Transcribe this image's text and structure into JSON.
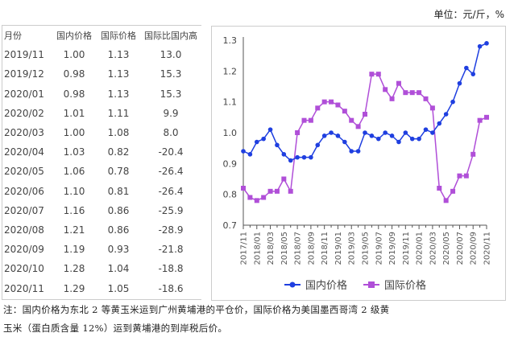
{
  "unit": "单位：元/斤，%",
  "table": {
    "headers": [
      "月份",
      "国内价格",
      "国际价格",
      "国际比国内高"
    ],
    "rows": [
      [
        "2019/11",
        "1.00",
        "1.13",
        "13.0"
      ],
      [
        "2019/12",
        "0.98",
        "1.13",
        "15.3"
      ],
      [
        "2020/01",
        "0.98",
        "1.13",
        "15.3"
      ],
      [
        "2020/02",
        "1.01",
        "1.11",
        "9.9"
      ],
      [
        "2020/03",
        "1.00",
        "1.08",
        "8.0"
      ],
      [
        "2020/04",
        "1.03",
        "0.82",
        "-20.4"
      ],
      [
        "2020/05",
        "1.06",
        "0.78",
        "-26.4"
      ],
      [
        "2020/06",
        "1.10",
        "0.81",
        "-26.4"
      ],
      [
        "2020/07",
        "1.16",
        "0.86",
        "-25.9"
      ],
      [
        "2020/08",
        "1.21",
        "0.86",
        "-28.9"
      ],
      [
        "2020/09",
        "1.19",
        "0.93",
        "-21.8"
      ],
      [
        "2020/10",
        "1.28",
        "1.04",
        "-18.8"
      ],
      [
        "2020/11",
        "1.29",
        "1.05",
        "-18.6"
      ]
    ]
  },
  "chart_data": {
    "type": "line",
    "ylim": [
      0.7,
      1.3
    ],
    "yticks": [
      "0.7",
      "0.8",
      "0.9",
      "1.0",
      "1.1",
      "1.2",
      "1.3"
    ],
    "xticklabels": [
      "2017/11",
      "2018/01",
      "2018/03",
      "2018/05",
      "2018/07",
      "2018/09",
      "2018/11",
      "2019/01",
      "2019/03",
      "2019/05",
      "2019/07",
      "2019/09",
      "2019/11",
      "2020/01",
      "2020/03",
      "2020/05",
      "2020/07",
      "2020/09",
      "2020/11"
    ],
    "legend_position": "bottom",
    "series": [
      {
        "name": "国内价格",
        "color": "#1f3fe0",
        "marker": "circle",
        "values": [
          0.94,
          0.93,
          0.97,
          0.98,
          1.01,
          0.96,
          0.93,
          0.91,
          0.92,
          0.92,
          0.92,
          0.96,
          0.99,
          1.0,
          0.99,
          0.97,
          0.94,
          0.94,
          1.0,
          0.99,
          0.98,
          1.0,
          0.99,
          0.97,
          1.0,
          0.98,
          0.98,
          1.01,
          1.0,
          1.03,
          1.06,
          1.1,
          1.16,
          1.21,
          1.19,
          1.28,
          1.29
        ]
      },
      {
        "name": "国际价格",
        "color": "#b04fd8",
        "marker": "square",
        "values": [
          0.82,
          0.79,
          0.78,
          0.79,
          0.81,
          0.81,
          0.85,
          0.81,
          1.0,
          1.04,
          1.04,
          1.08,
          1.1,
          1.1,
          1.09,
          1.07,
          1.04,
          1.02,
          1.06,
          1.19,
          1.19,
          1.14,
          1.11,
          1.16,
          1.13,
          1.13,
          1.13,
          1.11,
          1.08,
          0.82,
          0.78,
          0.81,
          0.86,
          0.86,
          0.93,
          1.04,
          1.05
        ]
      }
    ]
  },
  "notes": [
    "注：国内价格为东北 2 等黄玉米运到广州黄埔港的平仓价，国际价格为美国墨西哥湾 2 级黄",
    "玉米（蛋白质含量 12%）运到黄埔港的到岸税后价。"
  ]
}
